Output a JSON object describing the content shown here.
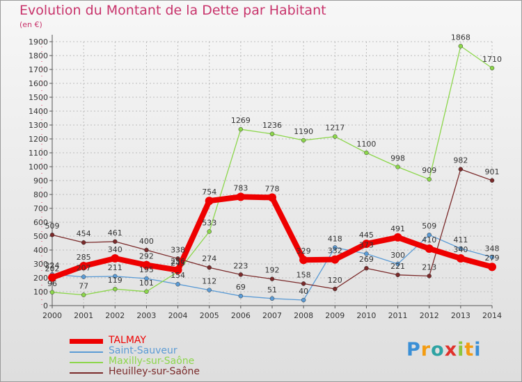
{
  "page": {
    "title": "Evolution du Montant de la Dette par Habitant",
    "unit": "(en €)",
    "logo": "Proxiti"
  },
  "colors": {
    "title": "#c8336b",
    "TALMAY": "#ee0000",
    "Saint-Sauveur": "#5b9bd5",
    "Maxilly-sur-Saône": "#8cd64b",
    "Heuilley-sur-Saône": "#7a2a2a",
    "grid": "#bbbbbb",
    "axis": "#555555"
  },
  "chart_data": {
    "type": "line",
    "title": "Evolution du Montant de la Dette par Habitant",
    "ylabel": "(en €)",
    "xlabel": "",
    "x": [
      "2000",
      "2001",
      "2002",
      "2003",
      "2004",
      "2005",
      "2006",
      "2007",
      "2008",
      "2009",
      "2010",
      "2011",
      "2012",
      "2013",
      "2014"
    ],
    "ylim": [
      0,
      1900
    ],
    "ytick_step": 100,
    "grid": true,
    "legend_position": "bottom-left",
    "series": [
      {
        "name": "TALMAY",
        "values": [
          202,
          285,
          340,
          292,
          256,
          754,
          783,
          778,
          329,
          332,
          445,
          491,
          410,
          340,
          279
        ]
      },
      {
        "name": "Saint-Sauveur",
        "values": [
          224,
          207,
          211,
          195,
          154,
          112,
          69,
          51,
          40,
          418,
          373,
          300,
          509,
          411,
          348
        ]
      },
      {
        "name": "Maxilly-sur-Saône",
        "values": [
          96,
          77,
          119,
          101,
          243,
          533,
          1269,
          1236,
          1190,
          1217,
          1100,
          998,
          909,
          1868,
          1710
        ]
      },
      {
        "name": "Heuilley-sur-Saône",
        "values": [
          509,
          454,
          461,
          400,
          338,
          274,
          223,
          192,
          158,
          120,
          269,
          221,
          213,
          982,
          901
        ]
      }
    ]
  }
}
